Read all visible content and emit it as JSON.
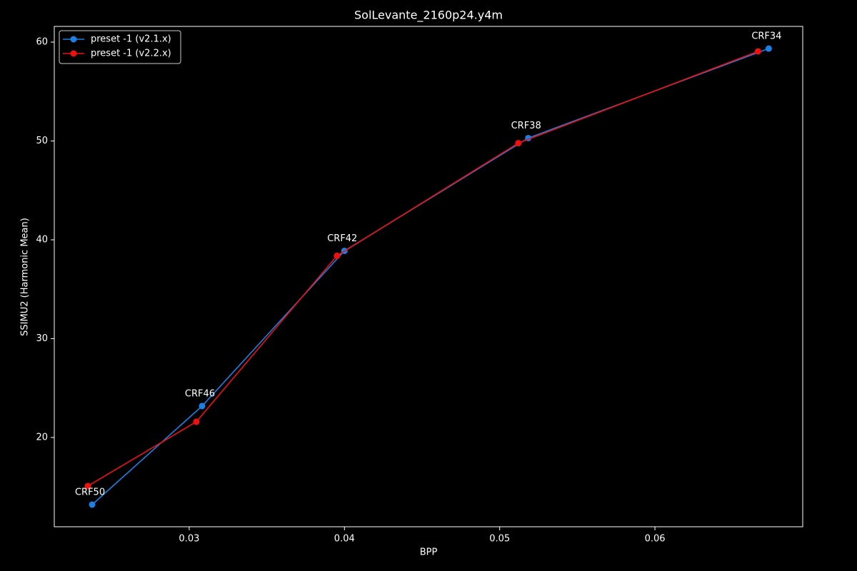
{
  "chart_data": {
    "type": "line",
    "title": "SolLevante_2160p24.y4m",
    "x_label": "BPP",
    "y_label": "SSIMU2 (Harmonic Mean)",
    "xlim": [
      0.02131,
      0.06952
    ],
    "ylim": [
      10.97,
      61.59
    ],
    "xticks": [
      0.03,
      0.04,
      0.05,
      0.06
    ],
    "yticks": [
      20,
      30,
      40,
      50,
      60
    ],
    "legend": "upper left",
    "grid": false,
    "series": [
      {
        "name": "preset -1 (v2.1.x)",
        "color": "#1a80e6",
        "x": [
          0.02375,
          0.03083,
          0.04,
          0.05184,
          0.06733
        ],
        "values": [
          13.21,
          23.18,
          38.88,
          50.29,
          59.35
        ]
      },
      {
        "name": "preset -1 (v2.2.x)",
        "color": "#f01010",
        "x": [
          0.02347,
          0.03046,
          0.03952,
          0.0512,
          0.06664
        ],
        "values": [
          15.09,
          21.59,
          38.38,
          49.78,
          59.06
        ]
      }
    ],
    "annotations": [
      "CRF50",
      "CRF46",
      "CRF42",
      "CRF38",
      "CRF34"
    ]
  }
}
